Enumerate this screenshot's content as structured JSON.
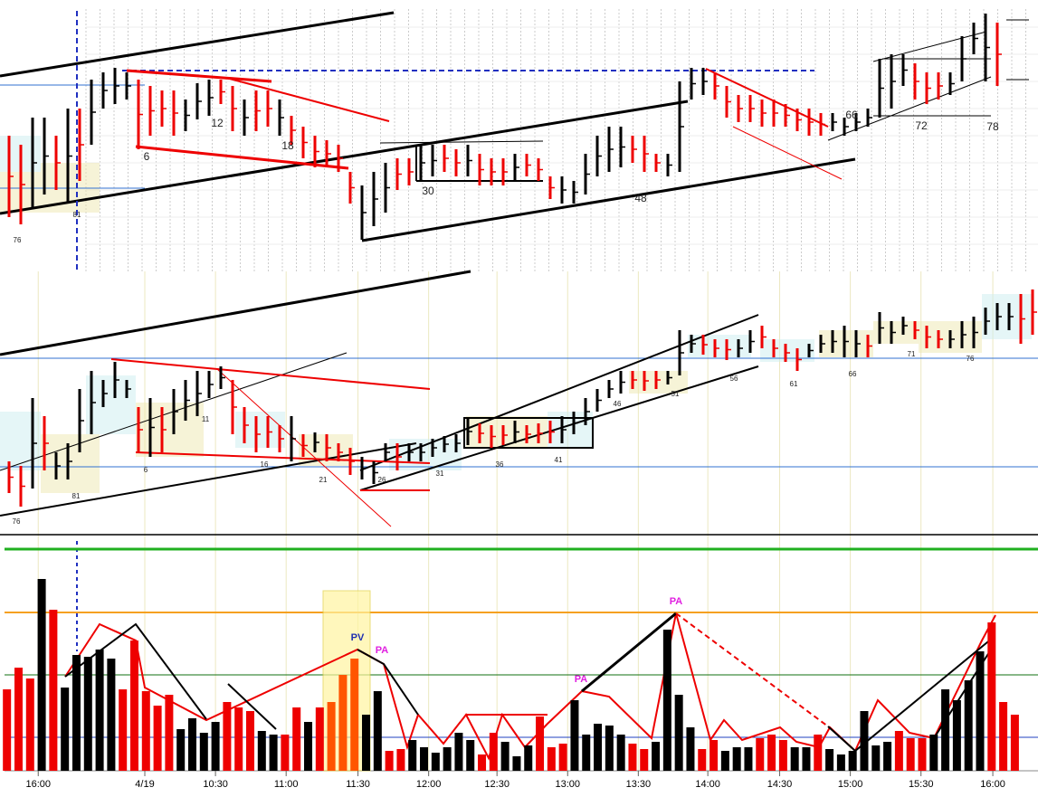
{
  "chart_data": [
    {
      "type": "range-bar",
      "ylim": [
        0,
        300
      ],
      "high": [
        150,
        140,
        170,
        170,
        150,
        180,
        180,
        212,
        220,
        225,
        220,
        212,
        205,
        200,
        200,
        190,
        208,
        212,
        212,
        205,
        190,
        200,
        200,
        190,
        172,
        160,
        150,
        145,
        140,
        110,
        95,
        110,
        120,
        125,
        125,
        140,
        140,
        140,
        135,
        140,
        130,
        125,
        125,
        130,
        130,
        125,
        105,
        105,
        100,
        130,
        150,
        160,
        160,
        150,
        150,
        130,
        130,
        210,
        225,
        225,
        220,
        205,
        195,
        195,
        190,
        190,
        185,
        180,
        180,
        175,
        175,
        170,
        175,
        180,
        235,
        240,
        240,
        230,
        220,
        220,
        220,
        260,
        275,
        285,
        275
      ],
      "low": [
        60,
        52,
        70,
        85,
        90,
        75,
        100,
        140,
        180,
        185,
        190,
        135,
        150,
        160,
        150,
        155,
        168,
        172,
        185,
        155,
        150,
        155,
        160,
        150,
        140,
        125,
        115,
        115,
        110,
        75,
        35,
        50,
        65,
        90,
        95,
        100,
        105,
        110,
        105,
        105,
        95,
        95,
        95,
        100,
        105,
        100,
        80,
        75,
        75,
        85,
        105,
        110,
        115,
        120,
        110,
        110,
        105,
        110,
        190,
        195,
        190,
        170,
        165,
        165,
        160,
        160,
        160,
        155,
        150,
        150,
        155,
        150,
        155,
        160,
        170,
        180,
        205,
        190,
        185,
        190,
        195,
        210,
        240,
        210,
        205
      ],
      "colors": [
        "#e00",
        "#e00",
        "#000",
        "#000",
        "#e00",
        "#000",
        "#e00",
        "#000",
        "#000",
        "#000",
        "#000",
        "#e00",
        "#e00",
        "#e00",
        "#e00",
        "#000",
        "#000",
        "#000",
        "#e00",
        "#e00",
        "#000",
        "#e00",
        "#e00",
        "#000",
        "#e00",
        "#e00",
        "#e00",
        "#e00",
        "#e00",
        "#e00",
        "#000",
        "#000",
        "#000",
        "#e00",
        "#e00",
        "#000",
        "#000",
        "#e00",
        "#e00",
        "#000",
        "#e00",
        "#e00",
        "#e00",
        "#000",
        "#e00",
        "#e00",
        "#e00",
        "#000",
        "#000",
        "#000",
        "#000",
        "#000",
        "#000",
        "#e00",
        "#e00",
        "#e00",
        "#000",
        "#000",
        "#000",
        "#000",
        "#e00",
        "#e00",
        "#e00",
        "#e00",
        "#e00",
        "#e00",
        "#e00",
        "#e00",
        "#e00",
        "#e00",
        "#000",
        "#000",
        "#000",
        "#000",
        "#000",
        "#000",
        "#000",
        "#e00",
        "#e00",
        "#e00",
        "#000",
        "#000",
        "#000",
        "#000",
        "#e00"
      ],
      "annotations": [
        "6",
        "12",
        "18",
        "30",
        "48",
        "66",
        "72",
        "78",
        "76",
        "81"
      ]
    },
    {
      "type": "range-bar",
      "ylim": [
        0,
        290
      ],
      "high": [
        80,
        75,
        150,
        130,
        90,
        100,
        160,
        180,
        170,
        190,
        170,
        140,
        150,
        140,
        160,
        170,
        180,
        180,
        185,
        170,
        140,
        130,
        130,
        120,
        130,
        110,
        112,
        110,
        100,
        95,
        85,
        80,
        100,
        100,
        100,
        100,
        105,
        108,
        110,
        128,
        122,
        120,
        120,
        125,
        120,
        122,
        125,
        130,
        135,
        150,
        160,
        170,
        180,
        180,
        180,
        180,
        180,
        225,
        220,
        220,
        215,
        215,
        215,
        225,
        230,
        215,
        210,
        205,
        210,
        220,
        225,
        230,
        225,
        220,
        245,
        235,
        240,
        235,
        230,
        225,
        225,
        235,
        240,
        250,
        255,
        255,
        265,
        270
      ],
      "low": [
        45,
        30,
        50,
        70,
        60,
        60,
        90,
        110,
        140,
        150,
        150,
        90,
        85,
        90,
        110,
        125,
        130,
        150,
        160,
        110,
        100,
        90,
        95,
        90,
        80,
        85,
        90,
        80,
        80,
        65,
        60,
        55,
        80,
        70,
        80,
        80,
        85,
        90,
        90,
        98,
        100,
        95,
        98,
        100,
        100,
        100,
        100,
        100,
        110,
        120,
        135,
        150,
        155,
        160,
        158,
        160,
        165,
        175,
        200,
        198,
        195,
        192,
        195,
        200,
        205,
        195,
        190,
        180,
        195,
        200,
        200,
        195,
        195,
        195,
        210,
        210,
        220,
        215,
        205,
        205,
        205,
        205,
        205,
        220,
        225,
        225,
        210,
        220
      ],
      "colors": [
        "#e00",
        "#e00",
        "#000",
        "#e00",
        "#000",
        "#000",
        "#000",
        "#000",
        "#000",
        "#000",
        "#000",
        "#e00",
        "#000",
        "#e00",
        "#000",
        "#000",
        "#000",
        "#000",
        "#000",
        "#e00",
        "#e00",
        "#e00",
        "#e00",
        "#e00",
        "#000",
        "#e00",
        "#000",
        "#e00",
        "#e00",
        "#e00",
        "#000",
        "#000",
        "#000",
        "#e00",
        "#000",
        "#000",
        "#000",
        "#000",
        "#000",
        "#000",
        "#e00",
        "#e00",
        "#e00",
        "#000",
        "#e00",
        "#e00",
        "#e00",
        "#000",
        "#000",
        "#000",
        "#000",
        "#000",
        "#000",
        "#e00",
        "#e00",
        "#e00",
        "#000",
        "#000",
        "#000",
        "#e00",
        "#e00",
        "#e00",
        "#000",
        "#000",
        "#e00",
        "#e00",
        "#e00",
        "#e00",
        "#000",
        "#000",
        "#000",
        "#000",
        "#000",
        "#e00",
        "#000",
        "#000",
        "#000",
        "#e00",
        "#e00",
        "#e00",
        "#000",
        "#000",
        "#000",
        "#000",
        "#000",
        "#000",
        "#e00",
        "#e00"
      ],
      "annotations": [
        "76",
        "81",
        "6",
        "11",
        "16",
        "21",
        "26",
        "31",
        "36",
        "41",
        "46",
        "51",
        "56",
        "61",
        "66",
        "71",
        "76"
      ]
    },
    {
      "type": "bar",
      "ylim": [
        0,
        220
      ],
      "xlim": [
        -0.6,
        89
      ],
      "values": [
        90,
        114,
        102,
        212,
        178,
        92,
        128,
        126,
        134,
        124,
        90,
        144,
        88,
        72,
        84,
        46,
        58,
        42,
        54,
        76,
        70,
        66,
        44,
        40,
        40,
        70,
        54,
        70,
        76,
        106,
        124,
        62,
        88,
        22,
        24,
        34,
        26,
        20,
        26,
        42,
        34,
        18,
        42,
        32,
        16,
        28,
        60,
        26,
        30,
        78,
        40,
        52,
        50,
        40,
        30,
        24,
        32,
        156,
        84,
        48,
        24,
        34,
        22,
        26,
        26,
        36,
        40,
        34,
        26,
        26,
        40,
        24,
        18,
        22,
        66,
        28,
        32,
        44,
        36,
        36,
        40,
        90,
        78,
        100,
        132,
        164,
        76,
        62
      ],
      "colors": [
        "#e00",
        "#e00",
        "#e00",
        "#000",
        "#e00",
        "#000",
        "#000",
        "#000",
        "#000",
        "#000",
        "#e00",
        "#e00",
        "#e00",
        "#e00",
        "#e00",
        "#000",
        "#000",
        "#000",
        "#000",
        "#e00",
        "#e00",
        "#e00",
        "#000",
        "#000",
        "#e00",
        "#e00",
        "#000",
        "#e00",
        "#f50",
        "#f50",
        "#f50",
        "#000",
        "#000",
        "#e00",
        "#e00",
        "#000",
        "#000",
        "#000",
        "#000",
        "#000",
        "#000",
        "#e00",
        "#e00",
        "#000",
        "#000",
        "#000",
        "#e00",
        "#e00",
        "#e00",
        "#000",
        "#000",
        "#000",
        "#000",
        "#000",
        "#e00",
        "#e00",
        "#000",
        "#000",
        "#000",
        "#000",
        "#e00",
        "#e00",
        "#000",
        "#000",
        "#000",
        "#e00",
        "#e00",
        "#e00",
        "#000",
        "#000",
        "#e00",
        "#000",
        "#000",
        "#000",
        "#000",
        "#000",
        "#000",
        "#e00",
        "#e00",
        "#e00",
        "#000",
        "#000",
        "#000",
        "#000",
        "#000",
        "#e00",
        "#e00",
        "#e00"
      ],
      "xticks": [
        {
          "value": 2.7,
          "label": "16:00"
        },
        {
          "value": 11.9,
          "label": "4/19"
        },
        {
          "value": 18,
          "label": "10:30"
        },
        {
          "value": 24.1,
          "label": "11:00"
        },
        {
          "value": 30.3,
          "label": "11:30"
        },
        {
          "value": 36.4,
          "label": "12:00"
        },
        {
          "value": 42.3,
          "label": "12:30"
        },
        {
          "value": 48.4,
          "label": "13:00"
        },
        {
          "value": 54.5,
          "label": "13:30"
        },
        {
          "value": 60.5,
          "label": "14:00"
        },
        {
          "value": 66.7,
          "label": "14:30"
        },
        {
          "value": 72.8,
          "label": "15:00"
        },
        {
          "value": 78.9,
          "label": "15:30"
        },
        {
          "value": 85.1,
          "label": "16:00"
        }
      ],
      "annotations": [
        "PV",
        "PA",
        "PA",
        "PA"
      ]
    }
  ]
}
